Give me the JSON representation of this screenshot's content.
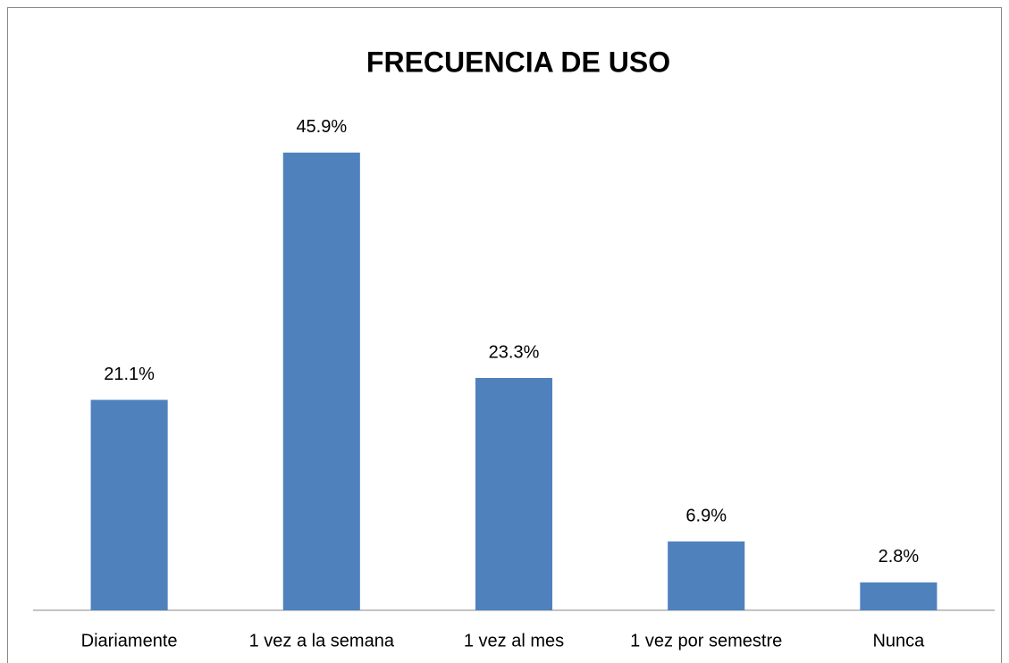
{
  "chart_data": {
    "type": "bar",
    "title": "FRECUENCIA DE USO",
    "categories": [
      "Diariamente",
      "1 vez a la semana",
      "1 vez al mes",
      "1 vez por semestre",
      "Nunca"
    ],
    "values": [
      21.1,
      45.9,
      23.3,
      6.9,
      2.8
    ],
    "value_labels": [
      "21.1%",
      "45.9%",
      "23.3%",
      "6.9%",
      "2.8%"
    ],
    "color": "#4f81bd",
    "ylim": [
      0,
      50
    ]
  }
}
